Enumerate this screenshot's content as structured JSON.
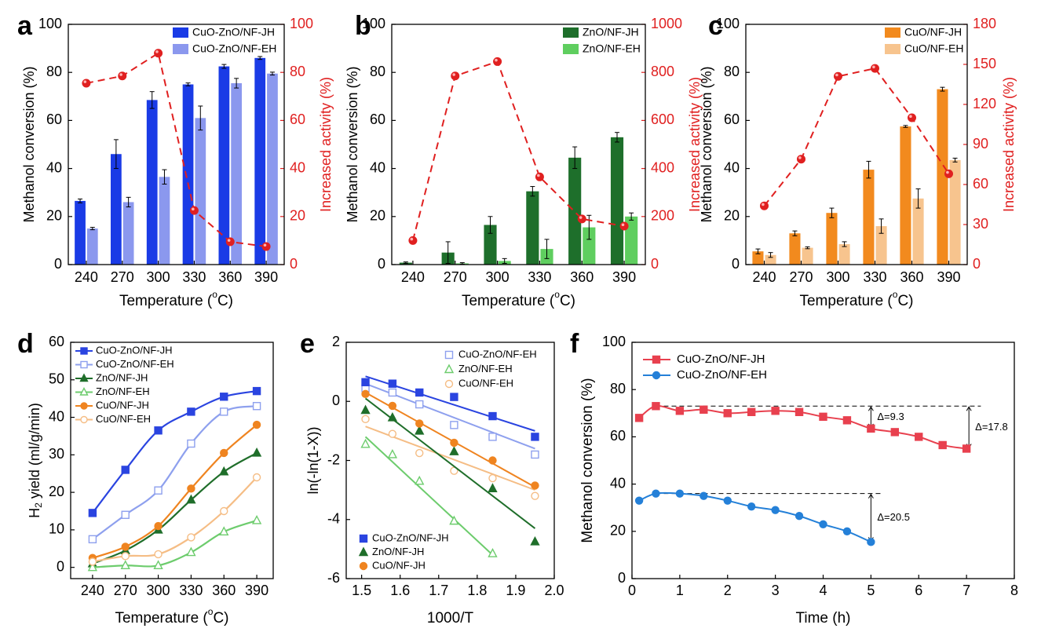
{
  "chart_data": [
    {
      "panel": "a",
      "type": "bar",
      "categories": [
        "240",
        "270",
        "300",
        "330",
        "360",
        "390"
      ],
      "xlabel": "Temperature (°C)",
      "ylabel": "Methanol conversion (%)",
      "y2label": "Increased activity (%)",
      "ylim": [
        0,
        100
      ],
      "y2lim": [
        0,
        100
      ],
      "yticks": [
        "0",
        "20",
        "40",
        "60",
        "80",
        "100"
      ],
      "y2ticks": [
        "0",
        "20",
        "40",
        "60",
        "80",
        "100"
      ],
      "series": [
        {
          "name": "CuO-ZnO/NF-JH",
          "color": "#1a3be6",
          "values": [
            26.5,
            46,
            68.5,
            75,
            82.5,
            86
          ],
          "errors": [
            0.8,
            6,
            3.5,
            0.6,
            0.8,
            0.6
          ]
        },
        {
          "name": "CuO-ZnO/NF-EH",
          "color": "#8b98ee",
          "values": [
            15,
            26,
            36.5,
            61,
            75.5,
            79.5
          ],
          "errors": [
            0.5,
            2,
            3,
            5,
            2,
            0.6
          ]
        }
      ],
      "line": {
        "name": "Increased activity",
        "values": [
          75.5,
          78.5,
          88,
          22.5,
          9.5,
          7.5
        ],
        "color": "#e02020"
      }
    },
    {
      "panel": "b",
      "type": "bar",
      "categories": [
        "240",
        "270",
        "300",
        "330",
        "360",
        "390"
      ],
      "xlabel": "Temperature (°C)",
      "ylabel": "Methanol conversion (%)",
      "y2label": "Increased activity (%)",
      "ylim": [
        0,
        100
      ],
      "y2lim": [
        0,
        1000
      ],
      "yticks": [
        "0",
        "20",
        "40",
        "60",
        "80",
        "100"
      ],
      "y2ticks": [
        "0",
        "200",
        "400",
        "600",
        "800",
        "1000"
      ],
      "series": [
        {
          "name": "ZnO/NF-JH",
          "color": "#1e6f2b",
          "values": [
            0.8,
            5,
            16.5,
            30.5,
            44.5,
            53
          ],
          "errors": [
            0.3,
            4.5,
            3.5,
            2,
            4.5,
            2
          ]
        },
        {
          "name": "ZnO/NF-EH",
          "color": "#5fce5f",
          "values": [
            0,
            0.5,
            1.5,
            6.5,
            15.5,
            20
          ],
          "errors": [
            0,
            0.3,
            1,
            4,
            5,
            1.5
          ]
        }
      ],
      "line": {
        "name": "Increased activity",
        "values": [
          100,
          785,
          845,
          365,
          190,
          160
        ],
        "color": "#e02020"
      }
    },
    {
      "panel": "c",
      "type": "bar",
      "categories": [
        "240",
        "270",
        "300",
        "330",
        "360",
        "390"
      ],
      "xlabel": "Temperature (°C)",
      "ylabel": "Methanol conversion (%)",
      "y2label": "Increased activity (%)",
      "ylim": [
        0,
        100
      ],
      "y2lim": [
        0,
        180
      ],
      "yticks": [
        "0",
        "20",
        "40",
        "60",
        "80",
        "100"
      ],
      "y2ticks": [
        "0",
        "30",
        "60",
        "90",
        "120",
        "150",
        "180"
      ],
      "series": [
        {
          "name": "CuO/NF-JH",
          "color": "#f28a1e",
          "values": [
            5.5,
            13,
            21.5,
            39.5,
            57.5,
            73
          ],
          "errors": [
            1,
            1,
            2,
            3.5,
            0.4,
            0.8
          ]
        },
        {
          "name": "CuO/NF-EH",
          "color": "#f7c48e",
          "values": [
            4,
            7,
            8.5,
            16,
            27.5,
            43.5
          ],
          "errors": [
            1,
            0.4,
            1,
            3,
            4,
            0.8
          ]
        }
      ],
      "line": {
        "name": "Increased activity",
        "values": [
          44,
          79,
          141,
          147,
          110,
          68
        ],
        "color": "#e02020"
      }
    },
    {
      "panel": "d",
      "type": "line",
      "x": [
        240,
        270,
        300,
        330,
        360,
        390
      ],
      "xticks": [
        "240",
        "270",
        "300",
        "330",
        "360",
        "390"
      ],
      "yticks": [
        "0",
        "10",
        "20",
        "30",
        "40",
        "50",
        "60"
      ],
      "xlabel": "Temperature (°C)",
      "ylabel": "H2 yield (ml/g/min)",
      "xlim": [
        220,
        405
      ],
      "ylim": [
        -3,
        60
      ],
      "series": [
        {
          "name": "CuO-ZnO/NF-JH",
          "color": "#2a44e0",
          "marker": "square",
          "filled": true,
          "values": [
            14.5,
            26,
            36.5,
            41.5,
            45.5,
            47
          ]
        },
        {
          "name": "CuO-ZnO/NF-EH",
          "color": "#8ea0ee",
          "marker": "square",
          "filled": false,
          "values": [
            7.5,
            14,
            20.5,
            33,
            41.5,
            43
          ]
        },
        {
          "name": "ZnO/NF-JH",
          "color": "#1f6e2a",
          "marker": "triangle",
          "filled": true,
          "values": [
            1,
            4.5,
            10,
            18,
            25.5,
            30.5
          ]
        },
        {
          "name": "ZnO/NF-EH",
          "color": "#6dcc6d",
          "marker": "triangle",
          "filled": false,
          "values": [
            0,
            0.5,
            0.5,
            4,
            9.5,
            12.5
          ]
        },
        {
          "name": "CuO/NF-JH",
          "color": "#ef8420",
          "marker": "circle",
          "filled": true,
          "values": [
            2.5,
            5.5,
            11,
            21,
            30.5,
            38
          ]
        },
        {
          "name": "CuO/NF-EH",
          "color": "#f5bd85",
          "marker": "circle",
          "filled": false,
          "values": [
            1.5,
            3,
            3.5,
            8,
            15,
            24
          ]
        }
      ]
    },
    {
      "panel": "e",
      "type": "scatter",
      "xticks": [
        "1.5",
        "1.6",
        "1.7",
        "1.8",
        "1.9",
        "2.0"
      ],
      "yticks": [
        "-6",
        "-4",
        "-2",
        "0",
        "2"
      ],
      "xlabel": "1000/T",
      "ylabel": "ln(-ln(1-X))",
      "xlim": [
        1.46,
        2.0
      ],
      "ylim": [
        -6,
        2
      ],
      "series": [
        {
          "name": "CuO-ZnO/NF-EH",
          "color": "#8ea0ee",
          "marker": "square",
          "filled": false,
          "x": [
            1.51,
            1.58,
            1.65,
            1.74,
            1.84,
            1.95
          ],
          "y": [
            0.45,
            0.3,
            -0.1,
            -0.8,
            -1.2,
            -1.8
          ],
          "fit": [
            [
              1.51,
              0.6
            ],
            [
              1.95,
              -1.6
            ]
          ]
        },
        {
          "name": "ZnO/NF-EH",
          "color": "#6dcc6d",
          "marker": "triangle",
          "filled": false,
          "x": [
            1.51,
            1.58,
            1.65,
            1.74,
            1.84
          ],
          "y": [
            -1.45,
            -1.8,
            -2.7,
            -4.05,
            -5.15
          ],
          "fit": [
            [
              1.51,
              -1.2
            ],
            [
              1.84,
              -5.2
            ]
          ]
        },
        {
          "name": "CuO/NF-EH",
          "color": "#f5bd85",
          "marker": "circle",
          "filled": false,
          "x": [
            1.51,
            1.58,
            1.65,
            1.74,
            1.84,
            1.95
          ],
          "y": [
            -0.6,
            -1.1,
            -1.75,
            -2.35,
            -2.6,
            -3.2
          ],
          "fit": [
            [
              1.51,
              -0.85
            ],
            [
              1.95,
              -3.0
            ]
          ]
        },
        {
          "name": "CuO-ZnO/NF-JH",
          "color": "#2a44e0",
          "marker": "square",
          "filled": true,
          "x": [
            1.51,
            1.58,
            1.65,
            1.74,
            1.84,
            1.95
          ],
          "y": [
            0.65,
            0.6,
            0.3,
            0.15,
            -0.5,
            -1.2
          ],
          "fit": [
            [
              1.51,
              0.85
            ],
            [
              1.95,
              -1.0
            ]
          ]
        },
        {
          "name": "ZnO/NF-JH",
          "color": "#1f6e2a",
          "marker": "triangle",
          "filled": true,
          "x": [
            1.51,
            1.58,
            1.65,
            1.74,
            1.84,
            1.95
          ],
          "y": [
            -0.3,
            -0.55,
            -1.0,
            -1.7,
            -2.95,
            -4.75
          ],
          "fit": [
            [
              1.51,
              0.1
            ],
            [
              1.95,
              -4.3
            ]
          ]
        },
        {
          "name": "CuO/NF-JH",
          "color": "#ef8420",
          "marker": "circle",
          "filled": true,
          "x": [
            1.51,
            1.58,
            1.65,
            1.74,
            1.84,
            1.95
          ],
          "y": [
            0.25,
            -0.15,
            -0.75,
            -1.4,
            -2.0,
            -2.85
          ],
          "fit": [
            [
              1.51,
              0.3
            ],
            [
              1.95,
              -2.9
            ]
          ]
        }
      ]
    },
    {
      "panel": "f",
      "type": "line",
      "xticks": [
        "0",
        "1",
        "2",
        "3",
        "4",
        "5",
        "6",
        "7",
        "8"
      ],
      "yticks": [
        "0",
        "20",
        "40",
        "60",
        "80",
        "100"
      ],
      "xlabel": "Time (h)",
      "ylabel": "Methanol conversion (%)",
      "xlim": [
        0,
        8
      ],
      "ylim": [
        0,
        100
      ],
      "series": [
        {
          "name": "CuO-ZnO/NF-JH",
          "color": "#e8404e",
          "marker": "square",
          "x": [
            0.15,
            0.5,
            1,
            1.5,
            2,
            2.5,
            3,
            3.5,
            4,
            4.5,
            5,
            5.5,
            6,
            6.5,
            7
          ],
          "y": [
            68,
            73,
            71,
            71.5,
            70,
            70.5,
            71,
            70.5,
            68.5,
            67,
            63.5,
            62,
            60,
            56.5,
            55
          ]
        },
        {
          "name": "CuO-ZnO/NF-EH",
          "color": "#2480d8",
          "marker": "circle",
          "x": [
            0.15,
            0.5,
            1,
            1.5,
            2,
            2.5,
            3,
            3.5,
            4,
            4.5,
            5
          ],
          "y": [
            33,
            36,
            36,
            35,
            33,
            30.5,
            29,
            26.5,
            23,
            20,
            15.5
          ]
        }
      ],
      "annotations": [
        {
          "text": "Δ=9.3",
          "x": 5,
          "y_from": 73,
          "y_to": 63.5
        },
        {
          "text": "Δ=17.8",
          "x": 7.05,
          "y_from": 73,
          "y_to": 55
        },
        {
          "text": "Δ=20.5",
          "x": 5,
          "y_from": 36,
          "y_to": 15.5
        }
      ]
    }
  ]
}
